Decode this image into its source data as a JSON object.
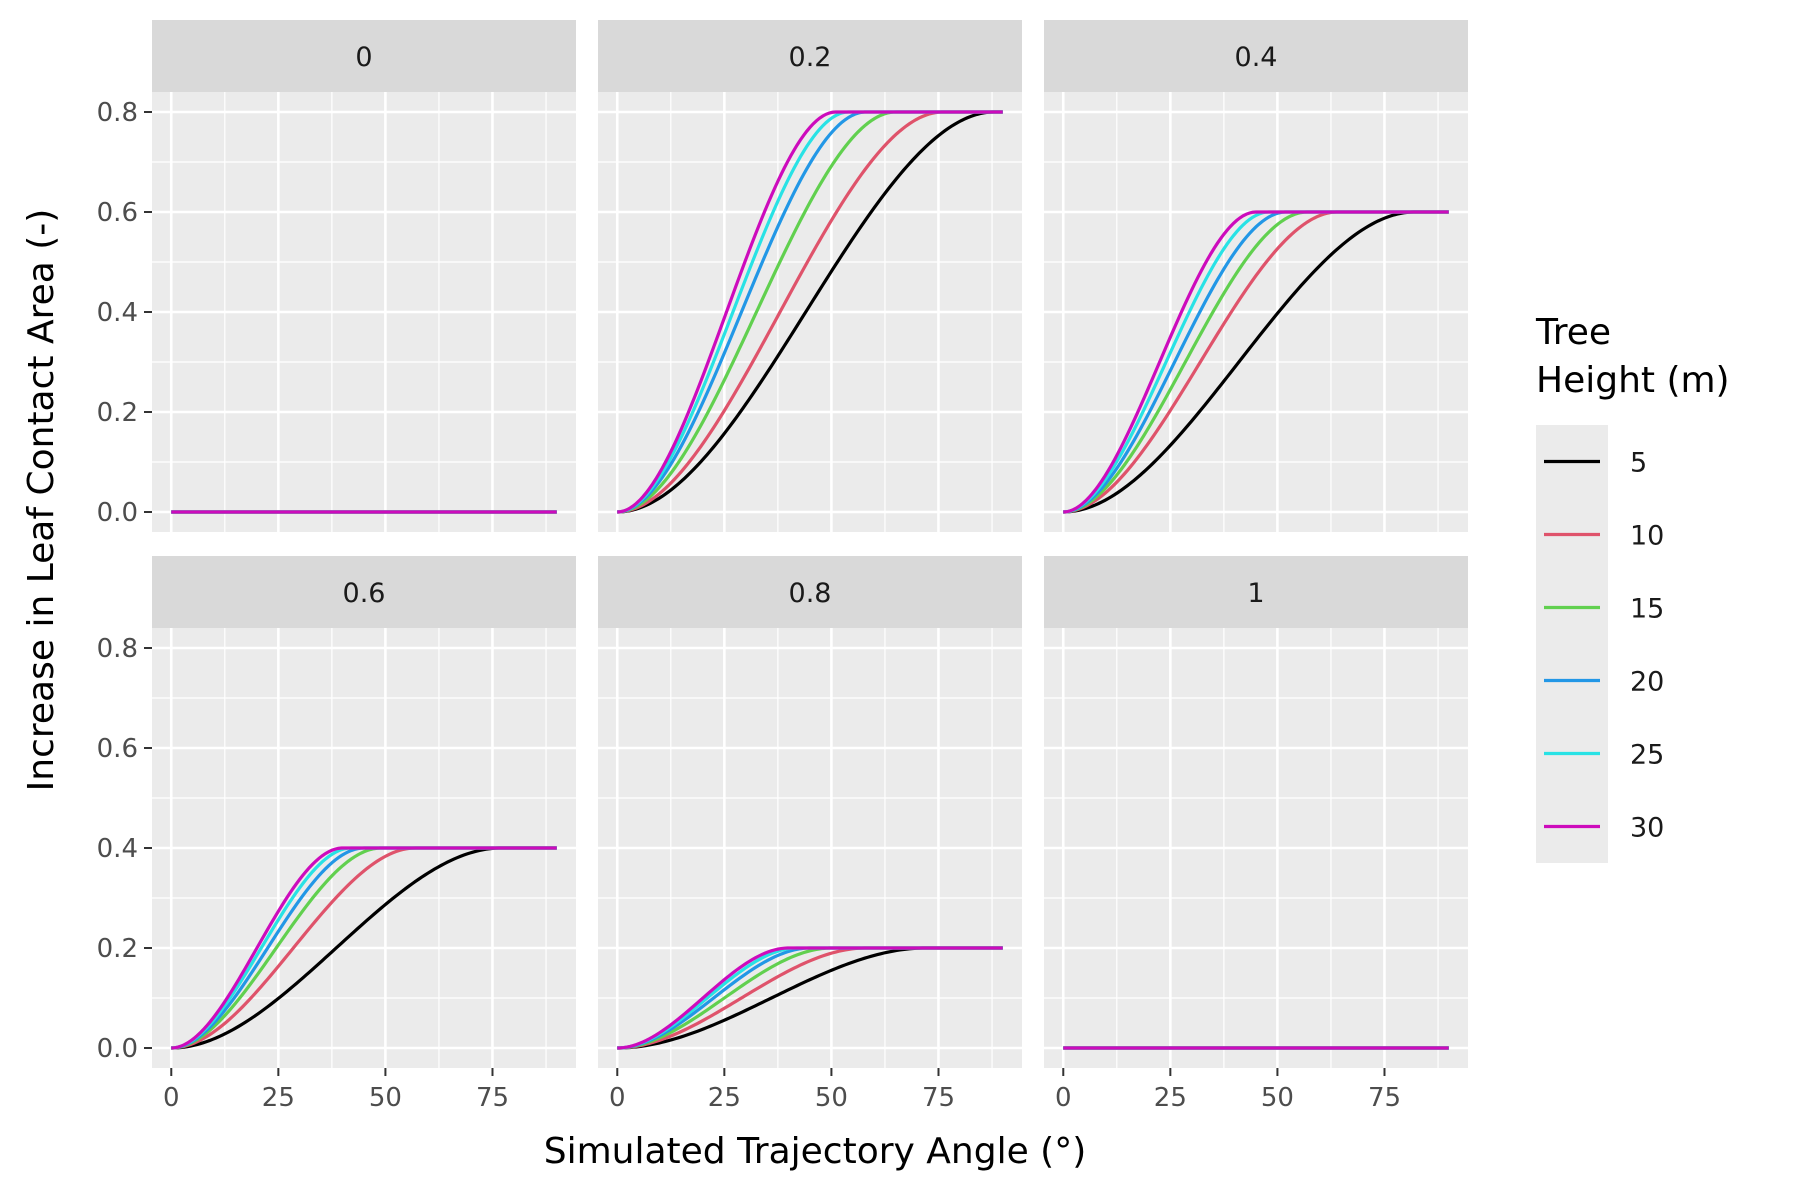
{
  "chart_data": {
    "type": "line",
    "facet_variable_values": [
      "0",
      "0.2",
      "0.4",
      "0.6",
      "0.8",
      "1"
    ],
    "facet_plateau_values": [
      0,
      0.8,
      0.6,
      0.4,
      0.2,
      0
    ],
    "xlabel": "Simulated Trajectory Angle (°)",
    "ylabel": "Increase in Leaf Contact Area (-)",
    "x_ticks": [
      "0",
      "25",
      "50",
      "75"
    ],
    "x_tick_values": [
      0,
      25,
      50,
      75
    ],
    "y_ticks": [
      "0.0",
      "0.2",
      "0.4",
      "0.6",
      "0.8"
    ],
    "y_tick_values": [
      0,
      0.2,
      0.4,
      0.6,
      0.8
    ],
    "xlim": [
      -4.5,
      94.5
    ],
    "ylim": [
      -0.04,
      0.84
    ],
    "grid": true,
    "legend_position": "right",
    "legend": {
      "title_line1": "Tree",
      "title_line2": "Height (m)"
    },
    "series": [
      {
        "name": "5",
        "color": "#000000",
        "saturation_angle": {
          "0.2": 88,
          "0.4": 82,
          "0.6": 77,
          "0.8": 72
        }
      },
      {
        "name": "10",
        "color": "#DF536B",
        "saturation_angle": {
          "0.2": 76,
          "0.4": 64,
          "0.6": 57,
          "0.8": 58
        }
      },
      {
        "name": "15",
        "color": "#61D04F",
        "saturation_angle": {
          "0.2": 65,
          "0.4": 57,
          "0.6": 49,
          "0.8": 50
        }
      },
      {
        "name": "20",
        "color": "#2297E6",
        "saturation_angle": {
          "0.2": 58,
          "0.4": 52,
          "0.6": 45,
          "0.8": 45
        }
      },
      {
        "name": "25",
        "color": "#28E2E5",
        "saturation_angle": {
          "0.2": 54,
          "0.4": 48,
          "0.6": 42,
          "0.8": 42
        }
      },
      {
        "name": "30",
        "color": "#CD0BBC",
        "saturation_angle": {
          "0.2": 51,
          "0.4": 45,
          "0.6": 40,
          "0.8": 40
        }
      }
    ],
    "x_max": 90
  },
  "colors": {
    "panel_bg": "#EBEBEB",
    "strip_bg": "#D9D9D9",
    "grid": "#FFFFFF",
    "tick": "#333333",
    "legend_key_bg": "#EBEBEB"
  }
}
